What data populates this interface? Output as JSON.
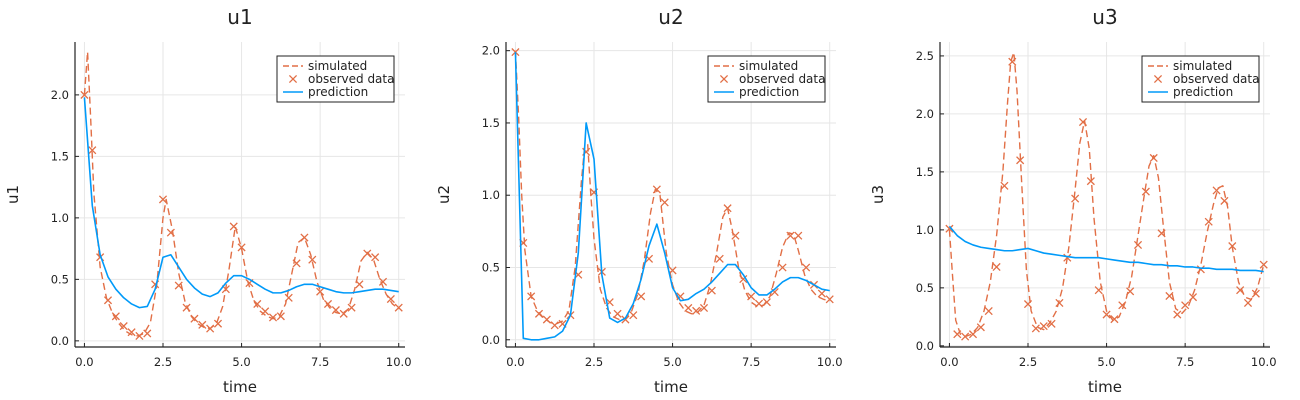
{
  "legend": {
    "simulated": "simulated",
    "observed": "observed data",
    "prediction": "prediction"
  },
  "colors": {
    "simulated": "#e26f46",
    "observed": "#e26f46",
    "prediction": "#009af9",
    "grid": "#e6e6e6",
    "axis": "#222222"
  },
  "chart_data": [
    {
      "type": "line",
      "title": "u1",
      "xlabel": "time",
      "ylabel": "u1",
      "xlim": [
        -0.3,
        10.2
      ],
      "ylim": [
        -0.05,
        2.43
      ],
      "xticks": [
        0,
        2.5,
        5,
        7.5,
        10
      ],
      "xtick_labels": [
        "0.0",
        "2.5",
        "5.0",
        "7.5",
        "10.0"
      ],
      "yticks": [
        0,
        0.5,
        1,
        1.5,
        2
      ],
      "ytick_labels": [
        "0.0",
        "0.5",
        "1.0",
        "1.5",
        "2.0"
      ],
      "grid": true,
      "legend_position": "top-right",
      "series": [
        {
          "name": "simulated",
          "style": "dashed-line",
          "x": [
            0,
            0.1,
            0.2,
            0.3,
            0.5,
            0.7,
            0.9,
            1.1,
            1.3,
            1.5,
            1.7,
            1.9,
            2.1,
            2.3,
            2.5,
            2.6,
            2.8,
            3.0,
            3.2,
            3.4,
            3.6,
            3.8,
            4.0,
            4.2,
            4.4,
            4.6,
            4.8,
            5.0,
            5.2,
            5.4,
            5.6,
            5.8,
            6.0,
            6.2,
            6.4,
            6.6,
            6.8,
            7.0,
            7.2,
            7.4,
            7.6,
            7.8,
            8.0,
            8.2,
            8.4,
            8.6,
            8.8,
            9.0,
            9.2,
            9.4,
            9.6,
            9.8,
            10.0
          ],
          "y": [
            2.0,
            2.35,
            1.8,
            1.2,
            0.6,
            0.35,
            0.22,
            0.14,
            0.08,
            0.05,
            0.04,
            0.06,
            0.15,
            0.45,
            1.0,
            1.15,
            0.9,
            0.55,
            0.32,
            0.2,
            0.14,
            0.11,
            0.1,
            0.14,
            0.28,
            0.58,
            0.93,
            0.75,
            0.48,
            0.32,
            0.24,
            0.2,
            0.18,
            0.2,
            0.3,
            0.55,
            0.8,
            0.84,
            0.7,
            0.48,
            0.34,
            0.27,
            0.23,
            0.22,
            0.26,
            0.42,
            0.65,
            0.72,
            0.66,
            0.5,
            0.38,
            0.3,
            0.26
          ]
        },
        {
          "name": "observed data",
          "style": "x-marker",
          "x": [
            0,
            0.25,
            0.5,
            0.75,
            1.0,
            1.25,
            1.5,
            1.75,
            2.0,
            2.25,
            2.5,
            2.75,
            3.0,
            3.25,
            3.5,
            3.75,
            4.0,
            4.25,
            4.5,
            4.75,
            5.0,
            5.25,
            5.5,
            5.75,
            6.0,
            6.25,
            6.5,
            6.75,
            7.0,
            7.25,
            7.5,
            7.75,
            8.0,
            8.25,
            8.5,
            8.75,
            9.0,
            9.25,
            9.5,
            9.75,
            10.0
          ],
          "y": [
            2.0,
            1.55,
            0.68,
            0.33,
            0.2,
            0.12,
            0.07,
            0.04,
            0.06,
            0.46,
            1.15,
            0.88,
            0.45,
            0.27,
            0.18,
            0.13,
            0.1,
            0.14,
            0.42,
            0.93,
            0.76,
            0.47,
            0.3,
            0.24,
            0.19,
            0.2,
            0.35,
            0.63,
            0.84,
            0.66,
            0.4,
            0.3,
            0.25,
            0.22,
            0.27,
            0.46,
            0.71,
            0.68,
            0.48,
            0.34,
            0.27
          ]
        },
        {
          "name": "prediction",
          "style": "solid-line",
          "x": [
            0,
            0.25,
            0.5,
            0.75,
            1.0,
            1.25,
            1.5,
            1.75,
            2.0,
            2.25,
            2.5,
            2.75,
            3.0,
            3.25,
            3.5,
            3.75,
            4.0,
            4.25,
            4.5,
            4.75,
            5.0,
            5.25,
            5.5,
            5.75,
            6.0,
            6.25,
            6.5,
            6.75,
            7.0,
            7.25,
            7.5,
            7.75,
            8.0,
            8.25,
            8.5,
            8.75,
            9.0,
            9.25,
            9.5,
            9.75,
            10.0
          ],
          "y": [
            1.98,
            1.1,
            0.7,
            0.52,
            0.42,
            0.35,
            0.3,
            0.27,
            0.28,
            0.42,
            0.68,
            0.7,
            0.6,
            0.5,
            0.43,
            0.38,
            0.36,
            0.39,
            0.47,
            0.53,
            0.53,
            0.5,
            0.46,
            0.42,
            0.39,
            0.39,
            0.41,
            0.44,
            0.46,
            0.46,
            0.44,
            0.42,
            0.4,
            0.39,
            0.39,
            0.4,
            0.41,
            0.42,
            0.42,
            0.41,
            0.4
          ]
        }
      ]
    },
    {
      "type": "line",
      "title": "u2",
      "xlabel": "time",
      "ylabel": "u2",
      "xlim": [
        -0.3,
        10.2
      ],
      "ylim": [
        -0.05,
        2.06
      ],
      "xticks": [
        0,
        2.5,
        5,
        7.5,
        10
      ],
      "xtick_labels": [
        "0.0",
        "2.5",
        "5.0",
        "7.5",
        "10.0"
      ],
      "yticks": [
        0,
        0.5,
        1,
        1.5,
        2
      ],
      "ytick_labels": [
        "0.0",
        "0.5",
        "1.0",
        "1.5",
        "2.0"
      ],
      "grid": true,
      "legend_position": "top-right",
      "series": [
        {
          "name": "simulated",
          "style": "dashed-line",
          "x": [
            0,
            0.1,
            0.2,
            0.3,
            0.5,
            0.7,
            0.9,
            1.1,
            1.3,
            1.5,
            1.7,
            1.9,
            2.1,
            2.2,
            2.3,
            2.4,
            2.5,
            2.7,
            2.9,
            3.1,
            3.3,
            3.5,
            3.7,
            3.9,
            4.1,
            4.3,
            4.45,
            4.6,
            4.8,
            5.0,
            5.2,
            5.4,
            5.6,
            5.8,
            6.0,
            6.2,
            6.4,
            6.6,
            6.75,
            6.9,
            7.1,
            7.3,
            7.5,
            7.7,
            7.9,
            8.1,
            8.3,
            8.5,
            8.7,
            8.85,
            9.0,
            9.2,
            9.4,
            9.6,
            9.8,
            10.0
          ],
          "y": [
            2.0,
            1.55,
            1.0,
            0.62,
            0.3,
            0.2,
            0.15,
            0.12,
            0.11,
            0.13,
            0.2,
            0.5,
            1.1,
            1.33,
            1.35,
            1.0,
            0.7,
            0.35,
            0.22,
            0.16,
            0.14,
            0.15,
            0.2,
            0.32,
            0.55,
            0.88,
            1.04,
            1.0,
            0.6,
            0.38,
            0.26,
            0.2,
            0.18,
            0.19,
            0.24,
            0.38,
            0.6,
            0.85,
            0.91,
            0.76,
            0.5,
            0.34,
            0.26,
            0.23,
            0.24,
            0.3,
            0.46,
            0.64,
            0.74,
            0.73,
            0.62,
            0.45,
            0.35,
            0.3,
            0.28,
            0.27
          ]
        },
        {
          "name": "observed data",
          "style": "x-marker",
          "x": [
            0,
            0.25,
            0.5,
            0.75,
            1.0,
            1.25,
            1.5,
            1.75,
            2.0,
            2.25,
            2.5,
            2.75,
            3.0,
            3.25,
            3.5,
            3.75,
            4.0,
            4.25,
            4.5,
            4.75,
            5.0,
            5.25,
            5.5,
            5.75,
            6.0,
            6.25,
            6.5,
            6.75,
            7.0,
            7.25,
            7.5,
            7.75,
            8.0,
            8.25,
            8.5,
            8.75,
            9.0,
            9.25,
            9.5,
            9.75,
            10.0
          ],
          "y": [
            1.99,
            0.67,
            0.3,
            0.18,
            0.14,
            0.1,
            0.11,
            0.17,
            0.45,
            1.3,
            1.02,
            0.47,
            0.26,
            0.18,
            0.14,
            0.17,
            0.3,
            0.56,
            1.04,
            0.95,
            0.48,
            0.3,
            0.22,
            0.2,
            0.22,
            0.34,
            0.56,
            0.91,
            0.72,
            0.42,
            0.3,
            0.25,
            0.26,
            0.33,
            0.5,
            0.72,
            0.72,
            0.5,
            0.38,
            0.32,
            0.28
          ]
        },
        {
          "name": "prediction",
          "style": "solid-line",
          "x": [
            0,
            0.25,
            0.5,
            0.75,
            1.0,
            1.25,
            1.5,
            1.75,
            2.0,
            2.25,
            2.5,
            2.75,
            3.0,
            3.25,
            3.5,
            3.75,
            4.0,
            4.25,
            4.5,
            4.75,
            5.0,
            5.25,
            5.5,
            5.75,
            6.0,
            6.25,
            6.5,
            6.75,
            7.0,
            7.25,
            7.5,
            7.75,
            8.0,
            8.25,
            8.5,
            8.75,
            9.0,
            9.25,
            9.5,
            9.75,
            10.0
          ],
          "y": [
            1.99,
            0.01,
            0.0,
            0.0,
            0.01,
            0.02,
            0.06,
            0.17,
            0.6,
            1.5,
            1.25,
            0.45,
            0.15,
            0.12,
            0.15,
            0.25,
            0.42,
            0.65,
            0.8,
            0.6,
            0.36,
            0.27,
            0.28,
            0.32,
            0.35,
            0.4,
            0.46,
            0.52,
            0.52,
            0.45,
            0.36,
            0.31,
            0.31,
            0.35,
            0.4,
            0.43,
            0.43,
            0.41,
            0.38,
            0.35,
            0.34
          ]
        }
      ]
    },
    {
      "type": "line",
      "title": "u3",
      "xlabel": "time",
      "ylabel": "u3",
      "xlim": [
        -0.3,
        10.2
      ],
      "ylim": [
        -0.01,
        2.62
      ],
      "xticks": [
        0,
        2.5,
        5,
        7.5,
        10
      ],
      "xtick_labels": [
        "0.0",
        "2.5",
        "5.0",
        "7.5",
        "10.0"
      ],
      "yticks": [
        0,
        0.5,
        1,
        1.5,
        2,
        2.5
      ],
      "ytick_labels": [
        "0.0",
        "0.5",
        "1.0",
        "1.5",
        "2.0",
        "2.5"
      ],
      "grid": true,
      "legend_position": "top-right",
      "series": [
        {
          "name": "simulated",
          "style": "dashed-line",
          "x": [
            0,
            0.1,
            0.2,
            0.35,
            0.5,
            0.7,
            0.9,
            1.1,
            1.3,
            1.5,
            1.7,
            1.85,
            1.95,
            2.05,
            2.15,
            2.3,
            2.45,
            2.6,
            2.8,
            3.0,
            3.2,
            3.4,
            3.6,
            3.8,
            4.0,
            4.15,
            4.3,
            4.45,
            4.6,
            4.8,
            5.0,
            5.2,
            5.4,
            5.6,
            5.8,
            6.0,
            6.2,
            6.35,
            6.5,
            6.65,
            6.8,
            7.0,
            7.2,
            7.4,
            7.6,
            7.8,
            8.0,
            8.2,
            8.4,
            8.55,
            8.7,
            8.85,
            9.0,
            9.2,
            9.4,
            9.6,
            9.8,
            10.0
          ],
          "y": [
            1.0,
            0.6,
            0.22,
            0.1,
            0.08,
            0.1,
            0.16,
            0.3,
            0.55,
            0.95,
            1.5,
            2.1,
            2.45,
            2.53,
            2.2,
            1.4,
            0.65,
            0.3,
            0.16,
            0.14,
            0.2,
            0.3,
            0.5,
            0.85,
            1.35,
            1.75,
            1.94,
            1.7,
            1.1,
            0.55,
            0.3,
            0.22,
            0.25,
            0.38,
            0.6,
            0.95,
            1.3,
            1.55,
            1.64,
            1.45,
            1.05,
            0.55,
            0.32,
            0.28,
            0.34,
            0.48,
            0.7,
            0.98,
            1.22,
            1.36,
            1.38,
            1.2,
            0.85,
            0.55,
            0.42,
            0.4,
            0.5,
            0.7
          ]
        },
        {
          "name": "observed data",
          "style": "x-marker",
          "x": [
            0,
            0.25,
            0.5,
            0.75,
            1.0,
            1.25,
            1.5,
            1.75,
            2.0,
            2.25,
            2.5,
            2.75,
            3.0,
            3.25,
            3.5,
            3.75,
            4.0,
            4.25,
            4.5,
            4.75,
            5.0,
            5.25,
            5.5,
            5.75,
            6.0,
            6.25,
            6.5,
            6.75,
            7.0,
            7.25,
            7.5,
            7.75,
            8.0,
            8.25,
            8.5,
            8.75,
            9.0,
            9.25,
            9.5,
            9.75,
            10.0
          ],
          "y": [
            1.01,
            0.1,
            0.08,
            0.1,
            0.16,
            0.3,
            0.68,
            1.38,
            2.45,
            1.6,
            0.36,
            0.15,
            0.17,
            0.19,
            0.37,
            0.76,
            1.27,
            1.93,
            1.42,
            0.48,
            0.27,
            0.23,
            0.35,
            0.47,
            0.87,
            1.33,
            1.62,
            0.97,
            0.43,
            0.27,
            0.35,
            0.42,
            0.66,
            1.07,
            1.34,
            1.25,
            0.86,
            0.48,
            0.37,
            0.45,
            0.7
          ]
        },
        {
          "name": "prediction",
          "style": "solid-line",
          "x": [
            0,
            0.25,
            0.5,
            0.75,
            1.0,
            1.25,
            1.5,
            1.75,
            2.0,
            2.25,
            2.5,
            2.75,
            3.0,
            3.25,
            3.5,
            3.75,
            4.0,
            4.25,
            4.5,
            4.75,
            5.0,
            5.25,
            5.5,
            5.75,
            6.0,
            6.25,
            6.5,
            6.75,
            7.0,
            7.25,
            7.5,
            7.75,
            8.0,
            8.25,
            8.5,
            8.75,
            9.0,
            9.25,
            9.5,
            9.75,
            10.0
          ],
          "y": [
            1.03,
            0.95,
            0.9,
            0.87,
            0.85,
            0.84,
            0.83,
            0.82,
            0.82,
            0.83,
            0.84,
            0.82,
            0.8,
            0.79,
            0.78,
            0.77,
            0.76,
            0.76,
            0.76,
            0.76,
            0.75,
            0.74,
            0.73,
            0.72,
            0.72,
            0.71,
            0.7,
            0.7,
            0.69,
            0.69,
            0.68,
            0.68,
            0.67,
            0.67,
            0.66,
            0.66,
            0.66,
            0.65,
            0.65,
            0.65,
            0.64
          ]
        }
      ]
    }
  ]
}
